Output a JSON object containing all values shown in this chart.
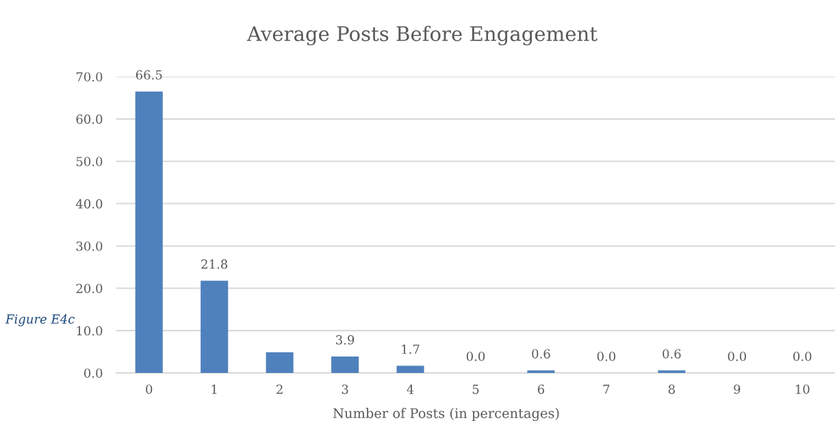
{
  "chart_data": {
    "type": "bar",
    "title": "Average Posts Before Engagement",
    "xlabel": "Number of Posts (in percentages)",
    "categories": [
      "0",
      "1",
      "2",
      "3",
      "4",
      "5",
      "6",
      "7",
      "8",
      "9",
      "10"
    ],
    "values": [
      66.5,
      21.8,
      4.9,
      3.9,
      1.7,
      0.0,
      0.6,
      0.0,
      0.6,
      0.0,
      0.0
    ],
    "value_labels": [
      "66.5",
      "21.8",
      null,
      "3.9",
      "1.7",
      "0.0",
      "0.6",
      "0.0",
      "0.6",
      "0.0",
      "0.0"
    ],
    "color": "#4f81bd",
    "ylim": [
      0,
      70
    ],
    "yticks": [
      {
        "value": 0,
        "label": "0.0"
      },
      {
        "value": 10,
        "label": "10.0"
      },
      {
        "value": 20,
        "label": "20.0"
      },
      {
        "value": 30,
        "label": "30.0"
      },
      {
        "value": 40,
        "label": "40.0"
      },
      {
        "value": 50,
        "label": "50.0"
      },
      {
        "value": 60,
        "label": "60.0"
      },
      {
        "value": 70,
        "label": "70.0"
      }
    ],
    "grid": "y",
    "annotations": [
      "Figure E4c"
    ]
  }
}
